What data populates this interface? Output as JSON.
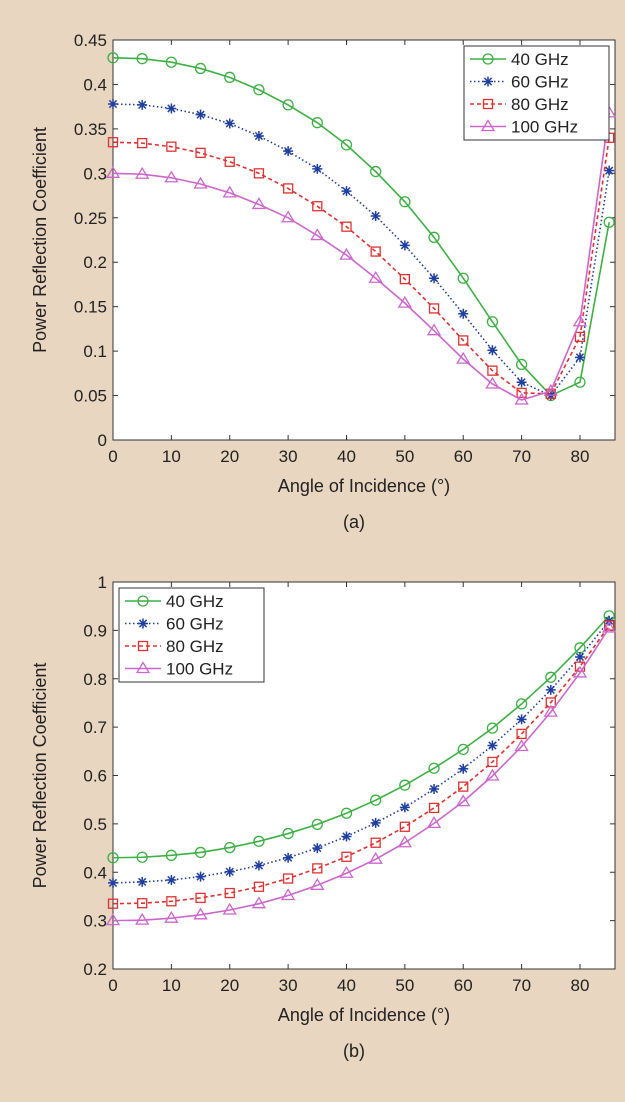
{
  "chart_data": [
    {
      "type": "line",
      "panel_label": "(a)",
      "xlabel": "Angle of Incidence (°)",
      "ylabel": "Power Reflection Coefficient",
      "xlim": [
        0,
        86
      ],
      "ylim": [
        0,
        0.45
      ],
      "xticks": [
        0,
        10,
        20,
        30,
        40,
        50,
        60,
        70,
        80
      ],
      "yticks": [
        0,
        0.05,
        0.1,
        0.15,
        0.2,
        0.25,
        0.3,
        0.35,
        0.4,
        0.45
      ],
      "ytick_labels": [
        "0",
        "0.05",
        "0.1",
        "0.15",
        "0.2",
        "0.25",
        "0.3",
        "0.35",
        "0.4",
        "0.45"
      ],
      "legend_position": "top-right",
      "grid": false,
      "x": [
        0,
        5,
        10,
        15,
        20,
        25,
        30,
        35,
        40,
        45,
        50,
        55,
        60,
        65,
        70,
        75,
        80,
        85
      ],
      "series": [
        {
          "name": "40 GHz",
          "color": "#3cb043",
          "marker": "circle",
          "dash": "solid",
          "values": [
            0.43,
            0.429,
            0.425,
            0.418,
            0.408,
            0.394,
            0.377,
            0.357,
            0.332,
            0.302,
            0.268,
            0.228,
            0.182,
            0.133,
            0.085,
            0.05,
            0.065,
            0.245
          ]
        },
        {
          "name": "60 GHz",
          "color": "#1f3f9f",
          "marker": "asterisk",
          "dash": "dotted",
          "values": [
            0.378,
            0.377,
            0.373,
            0.366,
            0.356,
            0.342,
            0.325,
            0.305,
            0.28,
            0.252,
            0.219,
            0.182,
            0.142,
            0.101,
            0.065,
            0.05,
            0.093,
            0.303
          ]
        },
        {
          "name": "80 GHz",
          "color": "#e03030",
          "marker": "square",
          "dash": "dashed",
          "values": [
            0.335,
            0.334,
            0.33,
            0.323,
            0.313,
            0.3,
            0.283,
            0.263,
            0.24,
            0.212,
            0.181,
            0.148,
            0.112,
            0.078,
            0.053,
            0.052,
            0.116,
            0.34
          ]
        },
        {
          "name": "100 GHz",
          "color": "#cc66cc",
          "marker": "triangle",
          "dash": "solid",
          "values": [
            0.3,
            0.299,
            0.295,
            0.288,
            0.278,
            0.265,
            0.25,
            0.23,
            0.208,
            0.182,
            0.154,
            0.123,
            0.091,
            0.063,
            0.045,
            0.055,
            0.133,
            0.368
          ]
        }
      ]
    },
    {
      "type": "line",
      "panel_label": "(b)",
      "xlabel": "Angle of Incidence (°)",
      "ylabel": "Power Reflection Coefficient",
      "xlim": [
        0,
        86
      ],
      "ylim": [
        0.2,
        1
      ],
      "xticks": [
        0,
        10,
        20,
        30,
        40,
        50,
        60,
        70,
        80
      ],
      "yticks": [
        0.2,
        0.3,
        0.4,
        0.5,
        0.6,
        0.7,
        0.8,
        0.9,
        1
      ],
      "ytick_labels": [
        "0.2",
        "0.3",
        "0.4",
        "0.5",
        "0.6",
        "0.7",
        "0.8",
        "0.9",
        "1"
      ],
      "legend_position": "top-left",
      "grid": false,
      "x": [
        0,
        5,
        10,
        15,
        20,
        25,
        30,
        35,
        40,
        45,
        50,
        55,
        60,
        65,
        70,
        75,
        80,
        85
      ],
      "series": [
        {
          "name": "40 GHz",
          "color": "#3cb043",
          "marker": "circle",
          "dash": "solid",
          "values": [
            0.43,
            0.431,
            0.435,
            0.441,
            0.451,
            0.464,
            0.48,
            0.499,
            0.522,
            0.549,
            0.58,
            0.615,
            0.654,
            0.698,
            0.748,
            0.803,
            0.864,
            0.93
          ]
        },
        {
          "name": "60 GHz",
          "color": "#1f3f9f",
          "marker": "asterisk",
          "dash": "dotted",
          "values": [
            0.378,
            0.38,
            0.384,
            0.391,
            0.401,
            0.414,
            0.43,
            0.45,
            0.474,
            0.502,
            0.534,
            0.572,
            0.614,
            0.662,
            0.716,
            0.777,
            0.845,
            0.92
          ]
        },
        {
          "name": "80 GHz",
          "color": "#e03030",
          "marker": "square",
          "dash": "dashed",
          "values": [
            0.335,
            0.336,
            0.34,
            0.347,
            0.357,
            0.37,
            0.387,
            0.408,
            0.432,
            0.461,
            0.494,
            0.533,
            0.577,
            0.628,
            0.686,
            0.751,
            0.825,
            0.91
          ]
        },
        {
          "name": "100 GHz",
          "color": "#cc66cc",
          "marker": "triangle",
          "dash": "solid",
          "values": [
            0.3,
            0.301,
            0.305,
            0.312,
            0.322,
            0.335,
            0.352,
            0.373,
            0.398,
            0.427,
            0.461,
            0.501,
            0.546,
            0.599,
            0.66,
            0.731,
            0.812,
            0.905
          ]
        }
      ]
    }
  ]
}
